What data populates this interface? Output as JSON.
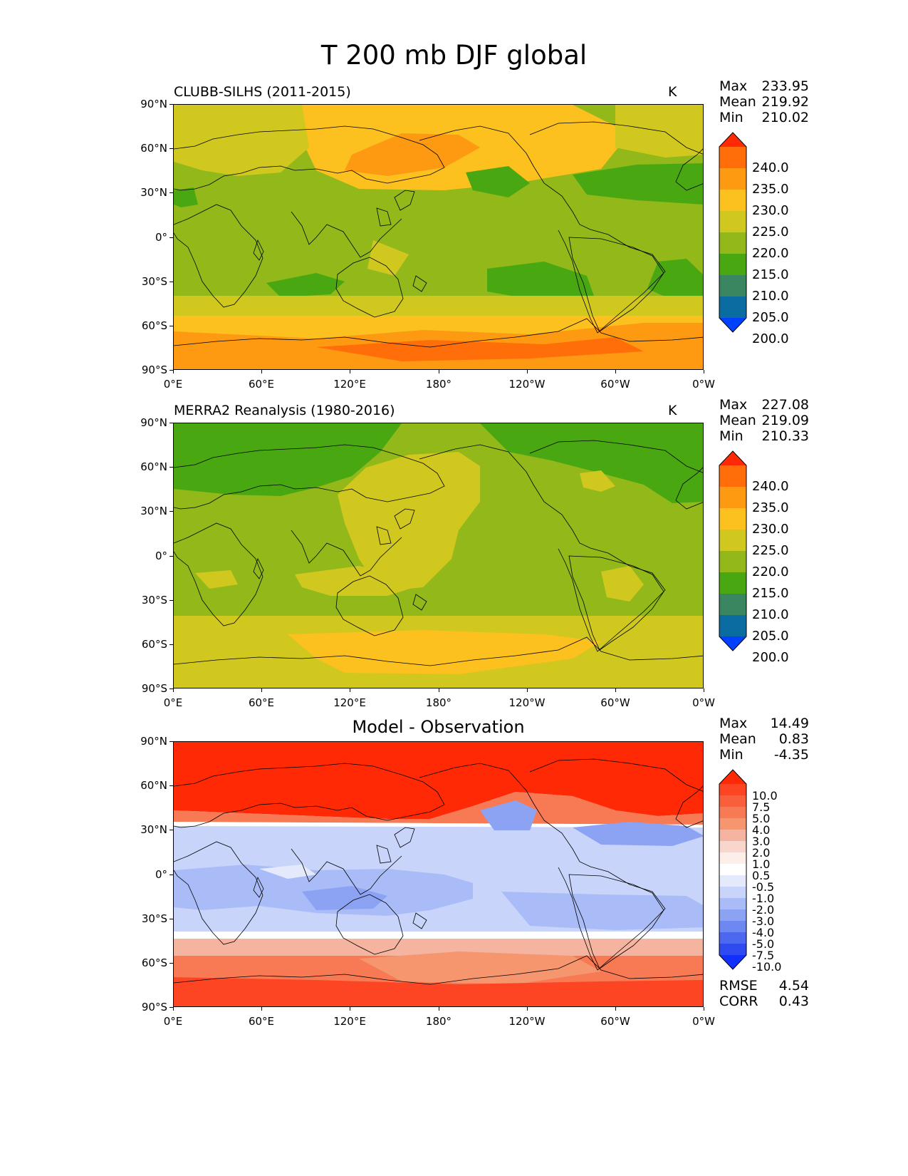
{
  "figure": {
    "title": "T 200 mb DJF global"
  },
  "axes": {
    "lat_labels": [
      "90°N",
      "60°N",
      "30°N",
      "0°",
      "30°S",
      "60°S",
      "90°S"
    ],
    "lon_labels": [
      "0°E",
      "60°E",
      "120°E",
      "180°",
      "120°W",
      "60°W",
      "0°W"
    ]
  },
  "panels": [
    {
      "title": "CLUBB-SILHS (2011-2015)",
      "units": "K",
      "stats": [
        {
          "label": "Max",
          "value": "233.95"
        },
        {
          "label": "Mean",
          "value": "219.92"
        },
        {
          "label": "Min",
          "value": "210.02"
        }
      ],
      "colorbar": {
        "labels": [
          "240.0",
          "235.0",
          "230.0",
          "225.0",
          "220.0",
          "215.0",
          "210.0",
          "205.0",
          "200.0"
        ],
        "colors": [
          "#ff2a05",
          "#ff6e08",
          "#fd9a12",
          "#fcc01f",
          "#d1c81f",
          "#92b81a",
          "#49a812",
          "#3a8660",
          "#0a6ca0",
          "#0040ff"
        ]
      }
    },
    {
      "title": "MERRA2 Reanalysis (1980-2016)",
      "units": "K",
      "stats": [
        {
          "label": "Max",
          "value": "227.08"
        },
        {
          "label": "Mean",
          "value": "219.09"
        },
        {
          "label": "Min",
          "value": "210.33"
        }
      ],
      "colorbar": {
        "labels": [
          "240.0",
          "235.0",
          "230.0",
          "225.0",
          "220.0",
          "215.0",
          "210.0",
          "205.0",
          "200.0"
        ],
        "colors": [
          "#ff2a05",
          "#ff6e08",
          "#fd9a12",
          "#fcc01f",
          "#d1c81f",
          "#92b81a",
          "#49a812",
          "#3a8660",
          "#0a6ca0",
          "#0040ff"
        ]
      }
    },
    {
      "title": "Model - Observation",
      "units": "",
      "stats": [
        {
          "label": "Max",
          "value": "14.49"
        },
        {
          "label": "Mean",
          "value": "0.83"
        },
        {
          "label": "Min",
          "value": "-4.35"
        }
      ],
      "extra_stats": [
        {
          "label": "RMSE",
          "value": "4.54"
        },
        {
          "label": "CORR",
          "value": "0.43"
        }
      ],
      "colorbar": {
        "labels": [
          "10.0",
          "7.5",
          "5.0",
          "4.0",
          "3.0",
          "2.0",
          "1.0",
          "0.5",
          "-0.5",
          "-1.0",
          "-2.0",
          "-3.0",
          "-4.0",
          "-5.0",
          "-7.5",
          "-10.0"
        ],
        "colors": [
          "#ff2a05",
          "#fd4524",
          "#f95f3b",
          "#f77a55",
          "#f6966f",
          "#f5b4a0",
          "#f9d6cc",
          "#fdeeea",
          "#ffffff",
          "#e4eafc",
          "#c8d4fa",
          "#a9bcf7",
          "#8ca3f4",
          "#6e88f1",
          "#4b68ee",
          "#2f4bf0",
          "#1130ff"
        ]
      }
    }
  ]
}
